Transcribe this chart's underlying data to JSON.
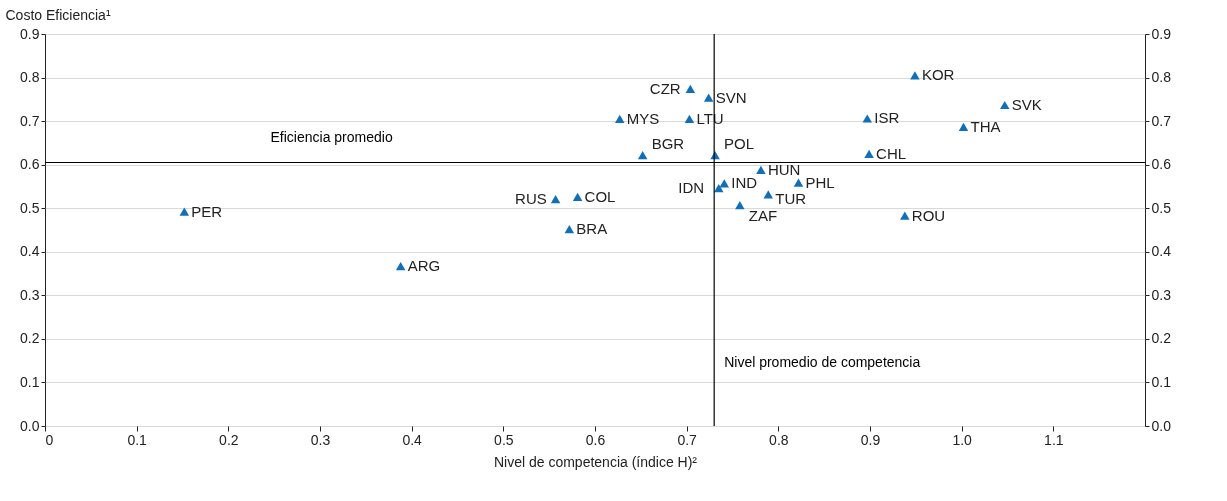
{
  "chart_data": {
    "type": "scatter",
    "xlabel": "Nivel de competencia (índice H)²",
    "ylabel": "Costo Eficiencia¹",
    "xlim": [
      0,
      1.2
    ],
    "xticks": [
      0,
      {
        "value": 0.1,
        "label": "0.1"
      },
      {
        "value": 0.2,
        "label": "0.2"
      },
      {
        "value": 0.3,
        "label": "0.3"
      },
      {
        "value": 0.4,
        "label": "0.4"
      },
      {
        "value": 0.5,
        "label": "0.5"
      },
      {
        "value": 0.6,
        "label": "0.6"
      },
      {
        "value": 0.7,
        "label": "0.7"
      },
      {
        "value": 0.8,
        "label": "0.8"
      },
      {
        "value": 0.9,
        "label": "0.9"
      },
      {
        "value": 1,
        "label": "1.0"
      },
      {
        "value": 1.1,
        "label": "1.1"
      }
    ],
    "ylim": [
      0,
      0.9
    ],
    "yticks": [
      {
        "value": 0,
        "label": "0.0"
      },
      0.1,
      0.2,
      0.3,
      0.4,
      0.5,
      0.6,
      0.7,
      0.8,
      0.9
    ],
    "y2lim": [
      0,
      0.9
    ],
    "y2ticks": [
      {
        "value": 0,
        "label": "0.0"
      },
      0.1,
      0.2,
      0.3,
      0.4,
      0.5,
      0.6,
      0.7,
      0.8,
      0.9
    ],
    "grid": "y",
    "legend": false,
    "marker": "triangle",
    "ref_lines": [
      {
        "axis": "y",
        "value": 0.605,
        "label": "Eficiencia promedio",
        "color": "#000000"
      },
      {
        "axis": "x",
        "value": 0.73,
        "label": "Nivel promedio de competencia",
        "color": "#000000"
      }
    ],
    "series": [
      {
        "name": "PER",
        "color": "#0f6fba",
        "x": [
          0.152
        ],
        "values": [
          0.492
        ]
      },
      {
        "name": "ARG",
        "color": "#0f6fba",
        "x": [
          0.388
        ],
        "values": [
          0.367
        ]
      },
      {
        "name": "RUS",
        "color": "#0f6fba",
        "x": [
          0.557
        ],
        "values": [
          0.521
        ]
      },
      {
        "name": "COL",
        "color": "#0f6fba",
        "x": [
          0.581
        ],
        "values": [
          0.526
        ]
      },
      {
        "name": "BRA",
        "color": "#0f6fba",
        "x": [
          0.572
        ],
        "values": [
          0.452
        ]
      },
      {
        "name": "MYS",
        "color": "#0f6fba",
        "x": [
          0.627
        ],
        "values": [
          0.705
        ]
      },
      {
        "name": "BGR",
        "color": "#0f6fba",
        "x": [
          0.652
        ],
        "values": [
          0.622
        ]
      },
      {
        "name": "CZR",
        "color": "#0f6fba",
        "x": [
          0.704
        ],
        "values": [
          0.774
        ]
      },
      {
        "name": "LTU",
        "color": "#0f6fba",
        "x": [
          0.703
        ],
        "values": [
          0.705
        ]
      },
      {
        "name": "SVN",
        "color": "#0f6fba",
        "x": [
          0.724
        ],
        "values": [
          0.754
        ]
      },
      {
        "name": "POL",
        "color": "#0f6fba",
        "x": [
          0.731
        ],
        "values": [
          0.622
        ]
      },
      {
        "name": "IND",
        "color": "#0f6fba",
        "x": [
          0.741
        ],
        "values": [
          0.557
        ]
      },
      {
        "name": "IDN",
        "color": "#0f6fba",
        "x": [
          0.735
        ],
        "values": [
          0.546
        ]
      },
      {
        "name": "ZAF",
        "color": "#0f6fba",
        "x": [
          0.758
        ],
        "values": [
          0.507
        ]
      },
      {
        "name": "HUN",
        "color": "#0f6fba",
        "x": [
          0.781
        ],
        "values": [
          0.588
        ]
      },
      {
        "name": "TUR",
        "color": "#0f6fba",
        "x": [
          0.789
        ],
        "values": [
          0.532
        ]
      },
      {
        "name": "PHL",
        "color": "#0f6fba",
        "x": [
          0.822
        ],
        "values": [
          0.559
        ]
      },
      {
        "name": "ISR",
        "color": "#0f6fba",
        "x": [
          0.897
        ],
        "values": [
          0.706
        ]
      },
      {
        "name": "CHL",
        "color": "#0f6fba",
        "x": [
          0.899
        ],
        "values": [
          0.625
        ]
      },
      {
        "name": "ROU",
        "color": "#0f6fba",
        "x": [
          0.938
        ],
        "values": [
          0.483
        ]
      },
      {
        "name": "KOR",
        "color": "#0f6fba",
        "x": [
          0.949
        ],
        "values": [
          0.805
        ]
      },
      {
        "name": "THA",
        "color": "#0f6fba",
        "x": [
          1.002
        ],
        "values": [
          0.687
        ]
      },
      {
        "name": "SVK",
        "color": "#0f6fba",
        "x": [
          1.047
        ],
        "values": [
          0.737
        ]
      }
    ]
  }
}
